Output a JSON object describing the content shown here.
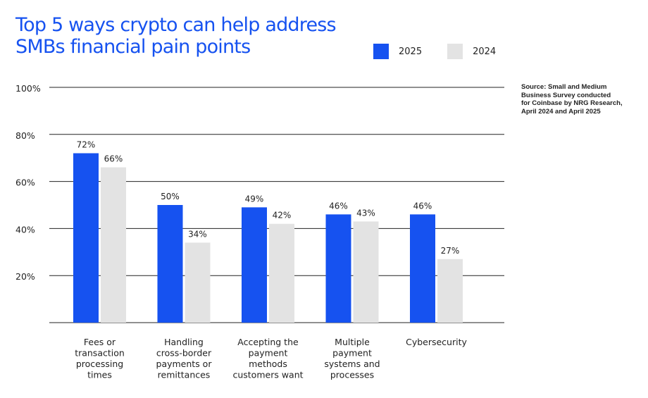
{
  "title_lines": [
    "Top 5 ways crypto can help address",
    "SMBs financial pain points"
  ],
  "source_note": "Source: Small and Medium\nBusiness Survey conducted\nfor Coinbase by NRG Research,\nApril 2024 and April 2025",
  "colors": {
    "title": "#1652f0",
    "series_2025": "#1652f0",
    "series_2024": "#e3e3e3",
    "gridline": "#222222"
  },
  "chart_data": {
    "type": "bar",
    "title": "Top 5 ways crypto can help address SMBs financial pain points",
    "categories": [
      [
        "Fees or",
        "transaction",
        "processing",
        "times"
      ],
      [
        "Handling",
        "cross-border",
        "payments or",
        "remittances"
      ],
      [
        "Accepting the",
        "payment",
        "methods",
        "customers want"
      ],
      [
        "Multiple",
        "payment",
        "systems and",
        "processes"
      ],
      [
        "Cybersecurity"
      ]
    ],
    "series": [
      {
        "name": "2025",
        "values": [
          72,
          50,
          49,
          46,
          46
        ],
        "labels": [
          "72%",
          "50%",
          "49%",
          "46%",
          "46%"
        ]
      },
      {
        "name": "2024",
        "values": [
          66,
          34,
          42,
          43,
          27
        ],
        "labels": [
          "66%",
          "34%",
          "42%",
          "43%",
          "27%"
        ]
      }
    ],
    "ylim": [
      0,
      100
    ],
    "yticks": [
      20,
      40,
      60,
      80,
      100
    ],
    "ytick_labels": [
      "20%",
      "40%",
      "60%",
      "80%",
      "100%"
    ],
    "grid": true,
    "legend_position": "top-right"
  }
}
